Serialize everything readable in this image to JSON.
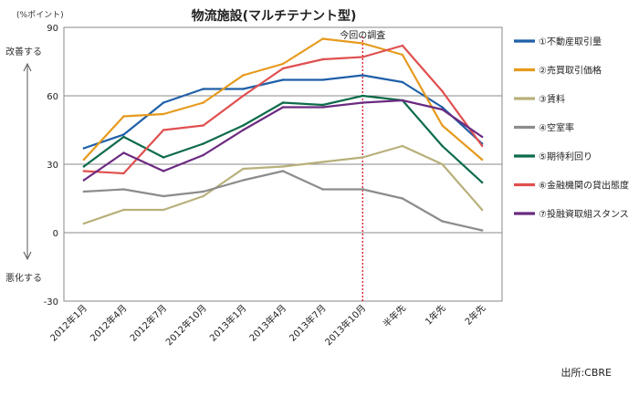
{
  "chart_data": {
    "type": "line",
    "title": "物流施設(マルチテナント型)",
    "y_unit": "(%ポイント)",
    "ylim": [
      -30,
      90
    ],
    "y_ticks": [
      -30,
      0,
      30,
      60,
      90
    ],
    "grid": true,
    "legend_position": "right",
    "up_label": "改善する",
    "down_label": "悪化する",
    "marker_label": "今回の調査",
    "marker_category": "2013年10月",
    "categories": [
      "2012年1月",
      "2012年4月",
      "2012年7月",
      "2012年10月",
      "2013年1月",
      "2013年4月",
      "2013年7月",
      "2013年10月",
      "半年先",
      "1年先",
      "2年先"
    ],
    "series": [
      {
        "name": "①不動産取引量",
        "color": "#1f5fa8",
        "values": [
          37,
          43,
          57,
          63,
          63,
          67,
          67,
          69,
          66,
          55,
          39
        ]
      },
      {
        "name": "②売買取引価格",
        "color": "#e69a1c",
        "values": [
          32,
          51,
          52,
          57,
          69,
          74,
          85,
          83,
          78,
          47,
          32
        ]
      },
      {
        "name": "③賃料",
        "color": "#b8b07a",
        "values": [
          4,
          10,
          10,
          16,
          28,
          29,
          31,
          33,
          38,
          30,
          10
        ]
      },
      {
        "name": "④空室率",
        "color": "#8c8c8c",
        "values": [
          18,
          19,
          16,
          18,
          23,
          27,
          19,
          19,
          15,
          5,
          1
        ]
      },
      {
        "name": "⑤期待利回り",
        "color": "#0d6b4a",
        "values": [
          29,
          42,
          33,
          39,
          47,
          57,
          56,
          60,
          58,
          38,
          22
        ]
      },
      {
        "name": "⑥金融機関の貸出態度",
        "color": "#e05050",
        "values": [
          27,
          26,
          45,
          47,
          60,
          72,
          76,
          77,
          82,
          62,
          38
        ]
      },
      {
        "name": "⑦投融資取組スタンス",
        "color": "#6b2a80",
        "values": [
          23,
          35,
          27,
          34,
          45,
          55,
          55,
          57,
          58,
          54,
          42
        ]
      }
    ]
  },
  "source": "出所:CBRE"
}
